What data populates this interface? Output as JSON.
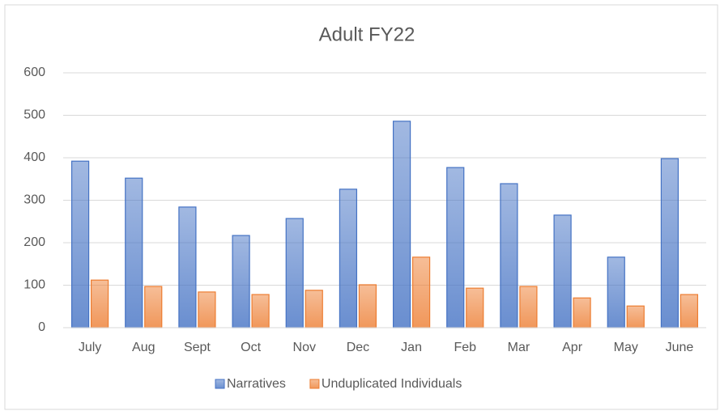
{
  "chart_data": {
    "type": "bar",
    "title": "Adult FY22",
    "categories": [
      "July",
      "Aug",
      "Sept",
      "Oct",
      "Nov",
      "Dec",
      "Jan",
      "Feb",
      "Mar",
      "Apr",
      "May",
      "June"
    ],
    "series": [
      {
        "name": "Narratives",
        "color": "#4472c4",
        "values": [
          392,
          352,
          284,
          217,
          257,
          326,
          486,
          377,
          339,
          265,
          166,
          398
        ]
      },
      {
        "name": "Unduplicated Individuals",
        "color": "#ed7d31",
        "values": [
          112,
          97,
          84,
          78,
          88,
          101,
          166,
          93,
          97,
          70,
          51,
          78
        ]
      }
    ],
    "ylim": [
      0,
      600
    ],
    "yticks": [
      0,
      100,
      200,
      300,
      400,
      500,
      600
    ],
    "grid": true,
    "legend": "bottom"
  }
}
